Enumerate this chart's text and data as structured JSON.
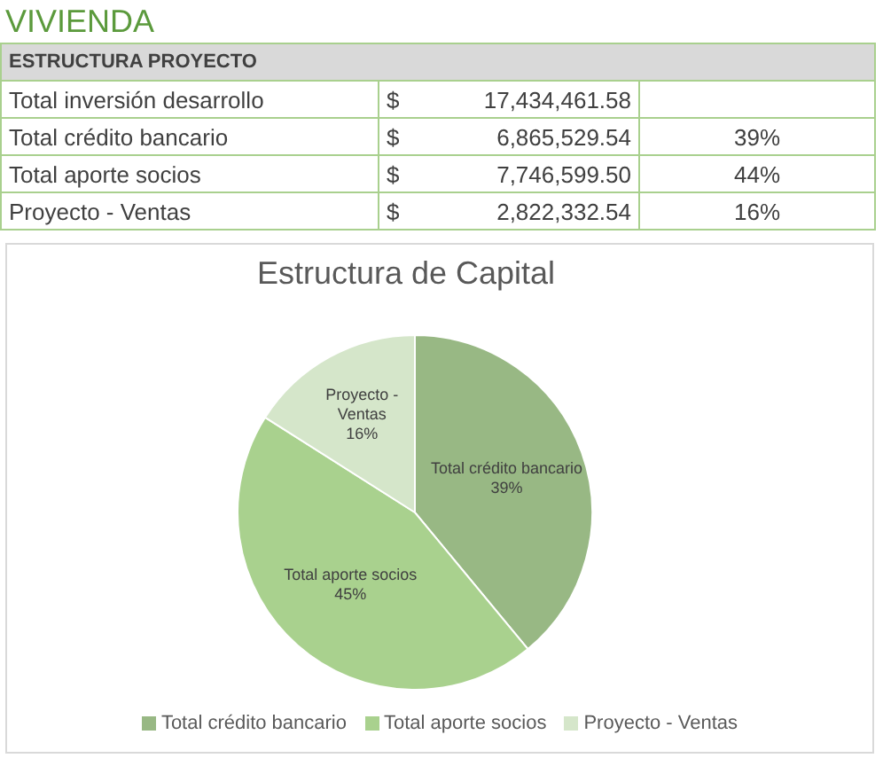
{
  "chart_data": [
    {
      "type": "other",
      "title": "VIVIENDA",
      "subtitle": "ESTRUCTURA PROYECTO",
      "categories": [
        "Total inversión desarrollo",
        "Total crédito bancario",
        "Total aporte socios",
        "Proyecto - Ventas"
      ],
      "annotations": [
        "$"
      ],
      "series": [
        {
          "values": [
            17434461.58,
            6865529.54,
            7746599.5,
            2822332.54
          ],
          "value_labels": [
            "17,434,461.58",
            "6,865,529.54",
            "7,746,599.50",
            "2,822,332.54"
          ]
        },
        {
          "values": [
            null,
            39,
            44,
            16
          ],
          "value_labels": [
            null,
            "39%",
            "44%",
            "16%"
          ]
        }
      ]
    },
    {
      "type": "pie",
      "title": "Estructura de Capital",
      "categories": [
        "Total crédito bancario",
        "Total aporte socios",
        "Proyecto - Ventas"
      ],
      "values": [
        39,
        45,
        16
      ],
      "value_labels": [
        "39%",
        "45%",
        "16%"
      ],
      "colors": [
        "#98b884",
        "#a9d18e",
        "#d5e6ca"
      ],
      "legend": "bottom"
    }
  ]
}
